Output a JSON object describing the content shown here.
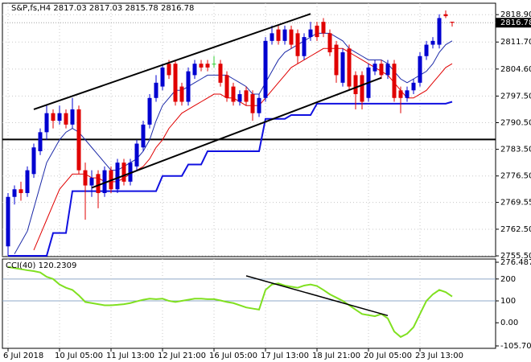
{
  "chart_data": {
    "type": "candlestick",
    "symbol": "S&P,fs,H4",
    "categories": [
      "6 Jul 2018",
      null,
      null,
      null,
      null,
      null,
      null,
      null,
      "10 Jul 05:00",
      null,
      null,
      null,
      null,
      null,
      null,
      null,
      "11 Jul 13:00",
      null,
      null,
      null,
      null,
      null,
      null,
      null,
      "12 Jul 21:00",
      null,
      null,
      null,
      null,
      null,
      null,
      null,
      "16 Jul 05:00",
      null,
      null,
      null,
      null,
      null,
      null,
      null,
      "17 Jul 13:00",
      null,
      null,
      null,
      null,
      null,
      null,
      null,
      "18 Jul 21:00",
      null,
      null,
      null,
      null,
      null,
      null,
      null,
      "20 Jul 05:00",
      null,
      null,
      null,
      null,
      null,
      null,
      null,
      "23 Jul 13:00",
      null,
      null,
      null,
      null,
      null
    ],
    "ohlc": {
      "colors": {
        "bull": "#0000d0",
        "bear": "#e00000",
        "doji": "#33cc33"
      },
      "open": [
        2758,
        2771,
        2773,
        2772,
        2777,
        2783,
        2788,
        2793,
        2791,
        2793,
        2790,
        2794,
        2778,
        2774,
        2777,
        2772,
        2778,
        2773,
        2780,
        2775,
        2779,
        2784,
        2790,
        2797,
        2800,
        2806,
        2806,
        2800,
        2796,
        2803,
        2806,
        2806,
        2806,
        2806,
        2803,
        2800,
        2796,
        2799,
        2798,
        2793,
        2797,
        2812,
        2815,
        2812,
        2815,
        2814,
        2808,
        2813,
        2816,
        2817,
        2814,
        2811,
        2801,
        2810,
        2803,
        2803,
        2797,
        2804,
        2806,
        2803,
        2806,
        2799,
        2797,
        2799,
        2801,
        2808,
        2811,
        2811,
        2819,
        2817.03
      ],
      "high": [
        2772,
        2774,
        2775,
        2779,
        2785,
        2789,
        2795,
        2794,
        2795,
        2794,
        2797,
        2795,
        2780,
        2778,
        2778,
        2779,
        2779,
        2781,
        2781,
        2781,
        2786,
        2791,
        2798,
        2803,
        2806,
        2807,
        2807,
        2801,
        2805,
        2807,
        2807,
        2807,
        2808,
        2807,
        2804,
        2801,
        2799,
        2800,
        2799,
        2798,
        2813,
        2816,
        2816,
        2816,
        2816,
        2815,
        2814,
        2817,
        2817,
        2818,
        2815,
        2812,
        2810,
        2811,
        2804,
        2804,
        2806,
        2807,
        2807,
        2807,
        2807,
        2800,
        2800,
        2802,
        2809,
        2812,
        2813,
        2819,
        2820,
        2817.03
      ],
      "low": [
        2755.5,
        2769,
        2770,
        2771,
        2776,
        2782,
        2786,
        2789,
        2790,
        2789,
        2789,
        2777,
        2765,
        2771,
        2768,
        2771,
        2772,
        2772,
        2774,
        2774,
        2778,
        2783,
        2789,
        2796,
        2799,
        2802,
        2795,
        2795,
        2795,
        2802,
        2804,
        2804,
        2805,
        2800,
        2796,
        2795,
        2795,
        2795,
        2791,
        2792,
        2796,
        2811,
        2811,
        2811,
        2810,
        2806,
        2807,
        2812,
        2812,
        2813,
        2808,
        2801,
        2800,
        2799,
        2794,
        2794,
        2796,
        2803,
        2802,
        2802,
        2796,
        2793,
        2796,
        2798,
        2800,
        2807,
        2810,
        2810,
        2818,
        2815.78
      ],
      "close": [
        2771,
        2773,
        2772,
        2778,
        2784,
        2788,
        2793,
        2791,
        2793,
        2790,
        2794,
        2778,
        2774,
        2776,
        2772,
        2778,
        2773,
        2780,
        2775,
        2780,
        2785,
        2790,
        2797,
        2801,
        2805,
        2803,
        2796,
        2796,
        2804,
        2806,
        2805,
        2805,
        2806,
        2801,
        2797,
        2796,
        2798,
        2796,
        2793,
        2797,
        2812,
        2814,
        2812,
        2815,
        2811,
        2808,
        2813,
        2815,
        2813,
        2814,
        2809,
        2803,
        2809,
        2800,
        2798,
        2796,
        2805,
        2806,
        2803,
        2806,
        2797,
        2797,
        2799,
        2801,
        2808,
        2811,
        2812,
        2818,
        2818.5,
        2816.78
      ]
    },
    "overlays": [
      {
        "color": "#1c2aa8",
        "width": 1,
        "values": [
          null,
          2756,
          2759,
          2762,
          2768,
          2774,
          2780,
          2783,
          2786,
          2788,
          2789,
          2788,
          2786,
          2784,
          2782,
          2780,
          2778,
          2778,
          2779,
          2780,
          2781,
          2783,
          2786,
          2791,
          2795,
          2797,
          2799,
          2799,
          2800,
          2801,
          2802,
          2803,
          2803,
          2803,
          2803,
          2802,
          2801,
          2800,
          2798,
          2798,
          2801,
          2804,
          2807,
          2809,
          2810,
          2811,
          2812,
          2813,
          2814,
          2814,
          2814,
          2813,
          2812,
          2810,
          2809,
          2808,
          2807,
          2807,
          2807,
          2806,
          2804,
          2802,
          2801,
          2802,
          2803,
          2804,
          2806,
          2809,
          2811,
          2812
        ]
      },
      {
        "color": "#e00000",
        "width": 1,
        "values": [
          null,
          null,
          null,
          null,
          2757,
          2761,
          2765,
          2769,
          2773,
          2775,
          2777,
          2777,
          2777,
          2776,
          2776,
          2775,
          2775,
          2775,
          2776,
          2777,
          2778,
          2779,
          2781,
          2784,
          2786,
          2789,
          2791,
          2793,
          2794,
          2795,
          2796,
          2797,
          2798,
          2798,
          2797,
          2797,
          2796,
          2795,
          2795,
          2795,
          2797,
          2799,
          2801,
          2803,
          2805,
          2806,
          2807,
          2808,
          2809,
          2810,
          2810,
          2810,
          2810,
          2809,
          2808,
          2807,
          2806,
          2805,
          2804,
          2803,
          2801,
          2799,
          2797,
          2797,
          2798,
          2799,
          2801,
          2803,
          2805,
          2806
        ]
      },
      {
        "color": "#1010e0",
        "width": 2,
        "values": [
          2755.5,
          2755.5,
          2755.5,
          2755.5,
          2755.5,
          2755.5,
          2755.5,
          2761.5,
          2761.5,
          2761.5,
          2772.5,
          2772.5,
          2772.5,
          2772.5,
          2772.5,
          2772.5,
          2772.5,
          2772.5,
          2772.5,
          2772.5,
          2772.5,
          2772.5,
          2772.5,
          2772.5,
          2776.5,
          2776.5,
          2776.5,
          2776.5,
          2779.5,
          2779.5,
          2779.5,
          2783,
          2783,
          2783,
          2783,
          2783,
          2783,
          2783,
          2783,
          2783,
          2791.5,
          2791.5,
          2791.5,
          2791.5,
          2792.5,
          2792.5,
          2792.5,
          2792.5,
          2795.5,
          2795.5,
          2795.5,
          2795.5,
          2795.5,
          2795.5,
          2795.5,
          2795.5,
          2795.5,
          2795.5,
          2795.5,
          2795.5,
          2795.5,
          2795.5,
          2795.5,
          2795.5,
          2795.5,
          2795.5,
          2795.5,
          2795.5,
          2795.5,
          2796
        ]
      }
    ],
    "trendlines": [
      {
        "x": [
          4,
          47
        ],
        "y": [
          2794.0,
          2819.1
        ]
      },
      {
        "x": [
          13,
          58
        ],
        "y": [
          2773.4,
          2802.3
        ]
      }
    ],
    "hline": 2786.1,
    "current_price": 2816.78,
    "ylim": [
      2755.3,
      2821.9
    ],
    "yticks": [
      {
        "value": 2818.9,
        "label": "2818.90"
      },
      {
        "value": 2811.7,
        "label": "2811.70"
      },
      {
        "value": 2804.6,
        "label": "2804.60"
      },
      {
        "value": 2797.5,
        "label": "2797.50"
      },
      {
        "value": 2790.5,
        "label": "2790.50"
      },
      {
        "value": 2783.5,
        "label": "2783.50"
      },
      {
        "value": 2776.5,
        "label": "2776.50"
      },
      2769.55,
      {
        "value": 2762.5,
        "label": "2762.50"
      },
      {
        "value": 2755.5,
        "label": "2755.50"
      }
    ],
    "grid": true,
    "indicator": {
      "name": "CCI(40)",
      "color": "#80e020",
      "values": [
        255,
        250,
        245,
        240,
        236,
        230,
        210,
        200,
        175,
        160,
        150,
        125,
        95,
        90,
        85,
        80,
        80,
        82,
        85,
        90,
        98,
        105,
        110,
        108,
        110,
        100,
        95,
        100,
        105,
        110,
        110,
        108,
        108,
        102,
        95,
        90,
        80,
        70,
        65,
        60,
        150,
        175,
        180,
        170,
        165,
        160,
        170,
        175,
        168,
        150,
        130,
        115,
        100,
        80,
        60,
        40,
        35,
        30,
        40,
        20,
        -40,
        -65,
        -50,
        -20,
        40,
        100,
        130,
        150,
        140,
        120.2309
      ],
      "ylim": [
        -105.7046,
        276.4876
      ],
      "yticks": [
        276.4876,
        200,
        100,
        {
          "value": 0,
          "label": "0.00"
        },
        -105.7046
      ],
      "levels": [
        200,
        100
      ],
      "trendline": {
        "x": [
          37,
          59
        ],
        "y": [
          214.5,
          32.7
        ]
      }
    }
  }
}
